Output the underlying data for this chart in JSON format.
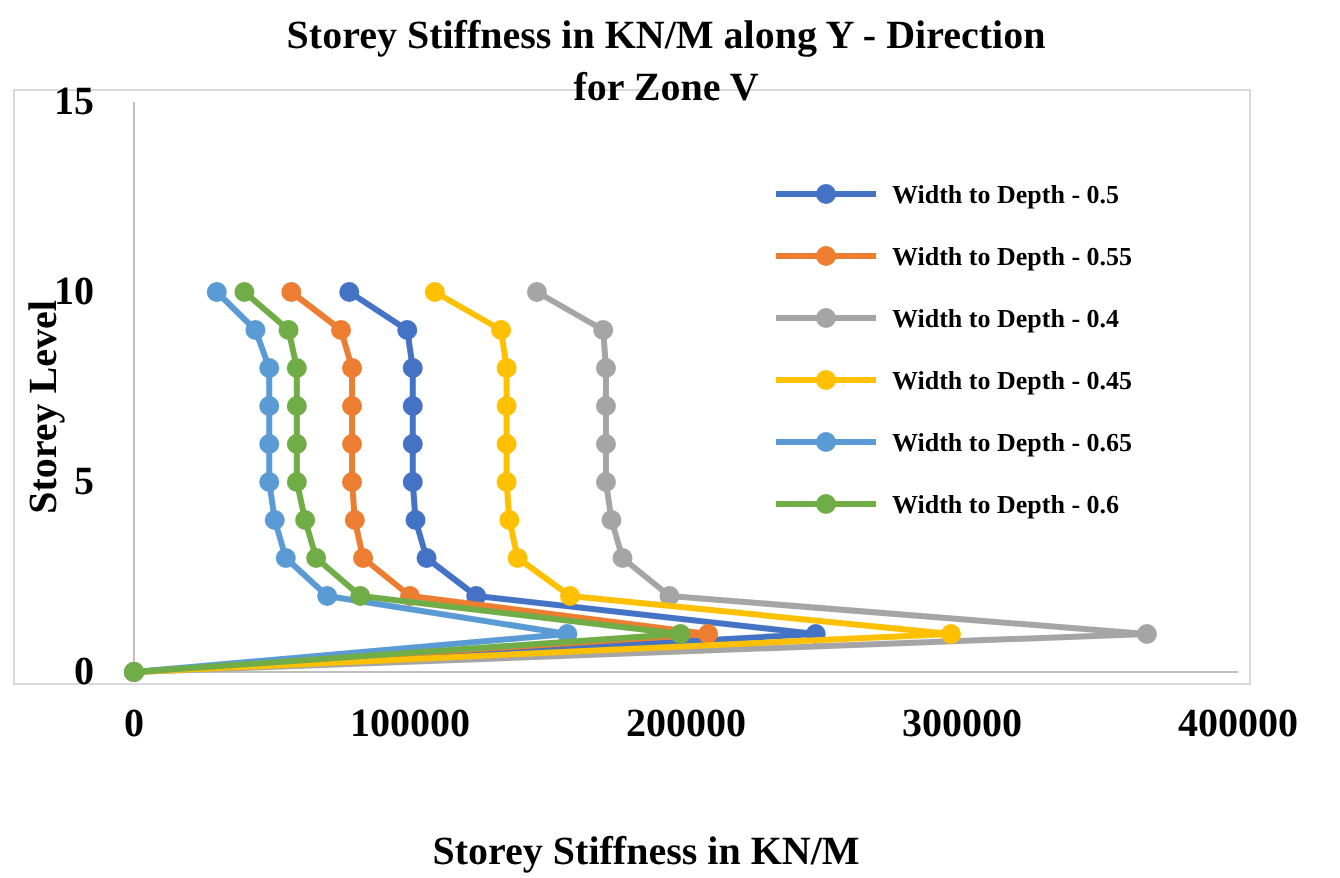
{
  "chart_data": {
    "type": "line",
    "title": "Storey Stiffness in KN/M along Y - Direction for Zone V",
    "xlabel": "Storey Stiffness in KN/M",
    "ylabel": "Storey Level",
    "xlim": [
      0,
      400000
    ],
    "xticks": [
      0,
      100000,
      200000,
      300000,
      400000
    ],
    "ylim": [
      0,
      15
    ],
    "yticks": [
      0,
      5,
      10,
      15
    ],
    "grid": false,
    "legend": "right",
    "marker": "circle",
    "series": [
      {
        "name": "Width to Depth - 0.5",
        "color": "#4472c4",
        "x": [
          0,
          247000,
          124000,
          106000,
          102000,
          101000,
          101000,
          101000,
          101000,
          99000,
          78000
        ],
        "values": [
          0,
          1,
          2,
          3,
          4,
          5,
          6,
          7,
          8,
          9,
          10
        ]
      },
      {
        "name": "Width to Depth - 0.55",
        "color": "#ed7d31",
        "x": [
          0,
          208000,
          100000,
          83000,
          80000,
          79000,
          79000,
          79000,
          79000,
          75000,
          57000
        ],
        "values": [
          0,
          1,
          2,
          3,
          4,
          5,
          6,
          7,
          8,
          9,
          10
        ]
      },
      {
        "name": "Width to Depth - 0.4",
        "color": "#a5a5a5",
        "x": [
          0,
          367000,
          194000,
          177000,
          173000,
          171000,
          171000,
          171000,
          171000,
          170000,
          146000
        ],
        "values": [
          0,
          1,
          2,
          3,
          4,
          5,
          6,
          7,
          8,
          9,
          10
        ]
      },
      {
        "name": "Width to Depth - 0.45",
        "color": "#ffc000",
        "x": [
          0,
          296000,
          158000,
          139000,
          136000,
          135000,
          135000,
          135000,
          135000,
          133000,
          109000
        ],
        "values": [
          0,
          1,
          2,
          3,
          4,
          5,
          6,
          7,
          8,
          9,
          10
        ]
      },
      {
        "name": "Width to Depth - 0.65",
        "color": "#5b9bd5",
        "x": [
          0,
          157000,
          70000,
          55000,
          51000,
          49000,
          49000,
          49000,
          49000,
          44000,
          30000
        ],
        "values": [
          0,
          1,
          2,
          3,
          4,
          5,
          6,
          7,
          8,
          9,
          10
        ]
      },
      {
        "name": "Width to Depth - 0.6",
        "color": "#70ad47",
        "x": [
          0,
          198000,
          82000,
          66000,
          62000,
          59000,
          59000,
          59000,
          59000,
          56000,
          40000
        ],
        "values": [
          0,
          1,
          2,
          3,
          4,
          5,
          6,
          7,
          8,
          9,
          10
        ]
      }
    ]
  }
}
